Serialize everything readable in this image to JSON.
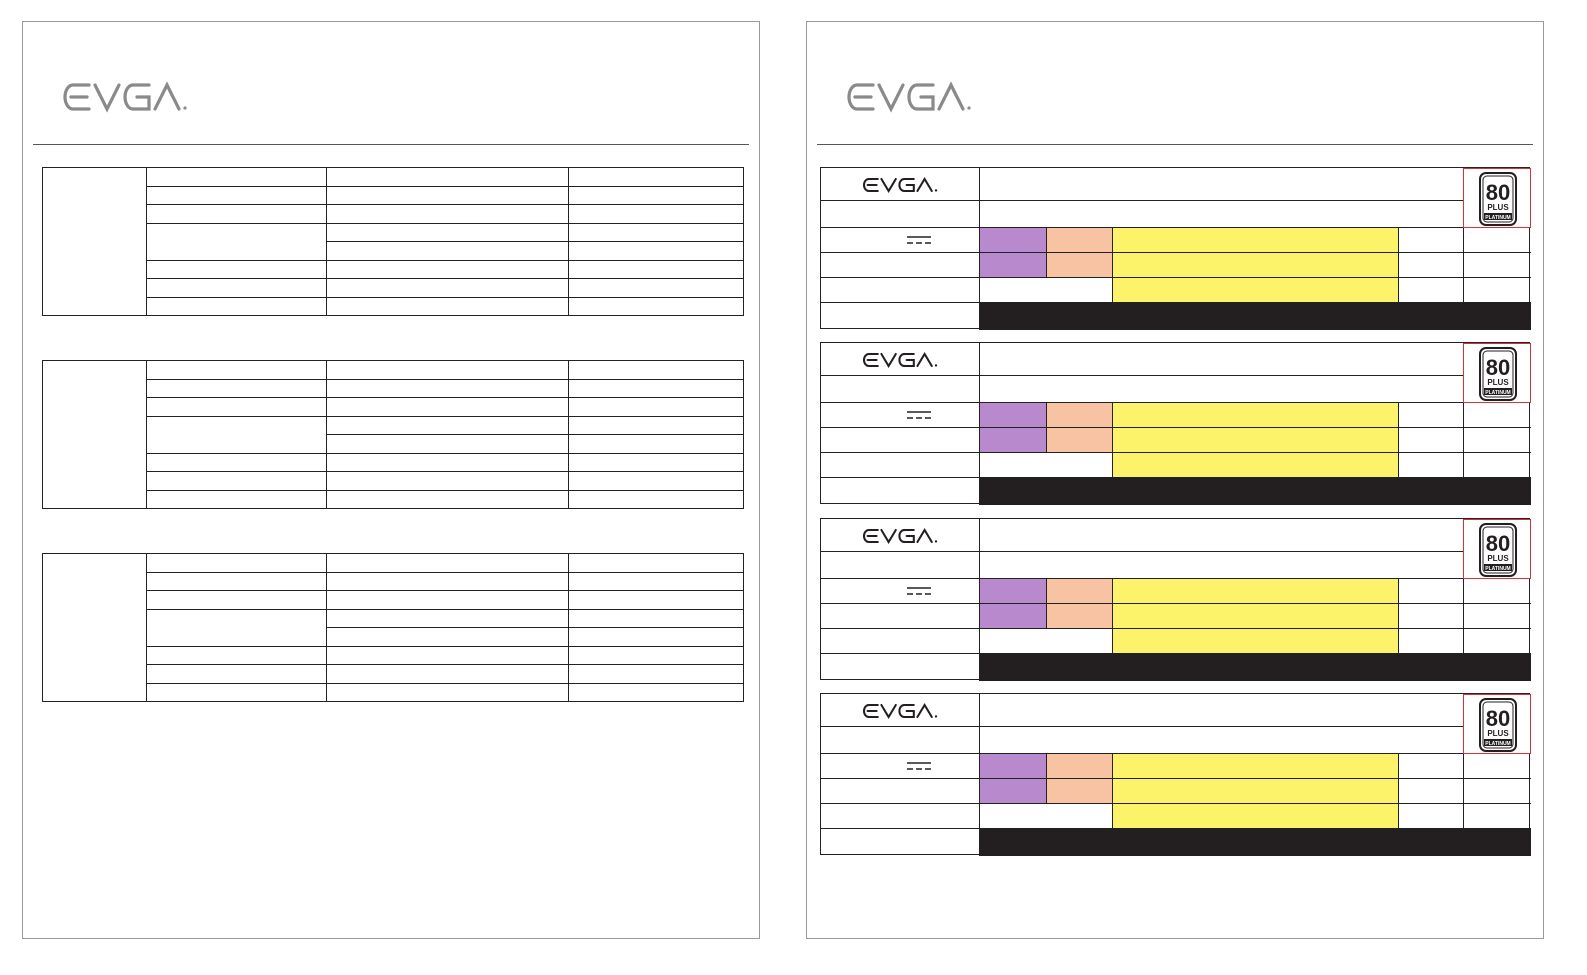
{
  "pages": [
    {
      "id": "left",
      "brand": "EVGA",
      "spec_tables": 3
    },
    {
      "id": "right",
      "brand": "EVGA",
      "labels": 4
    }
  ],
  "brand": {
    "name": "EVGA",
    "color": "#8a8a8a"
  },
  "badge": {
    "top": "80",
    "middle": "PLUS",
    "bottom": "PLATINUM",
    "frame_color": "#d9303a"
  },
  "colors": {
    "purple": "#b889cc",
    "peach": "#f7c3a3",
    "yellow": "#fdf36b",
    "black": "#231f20"
  }
}
